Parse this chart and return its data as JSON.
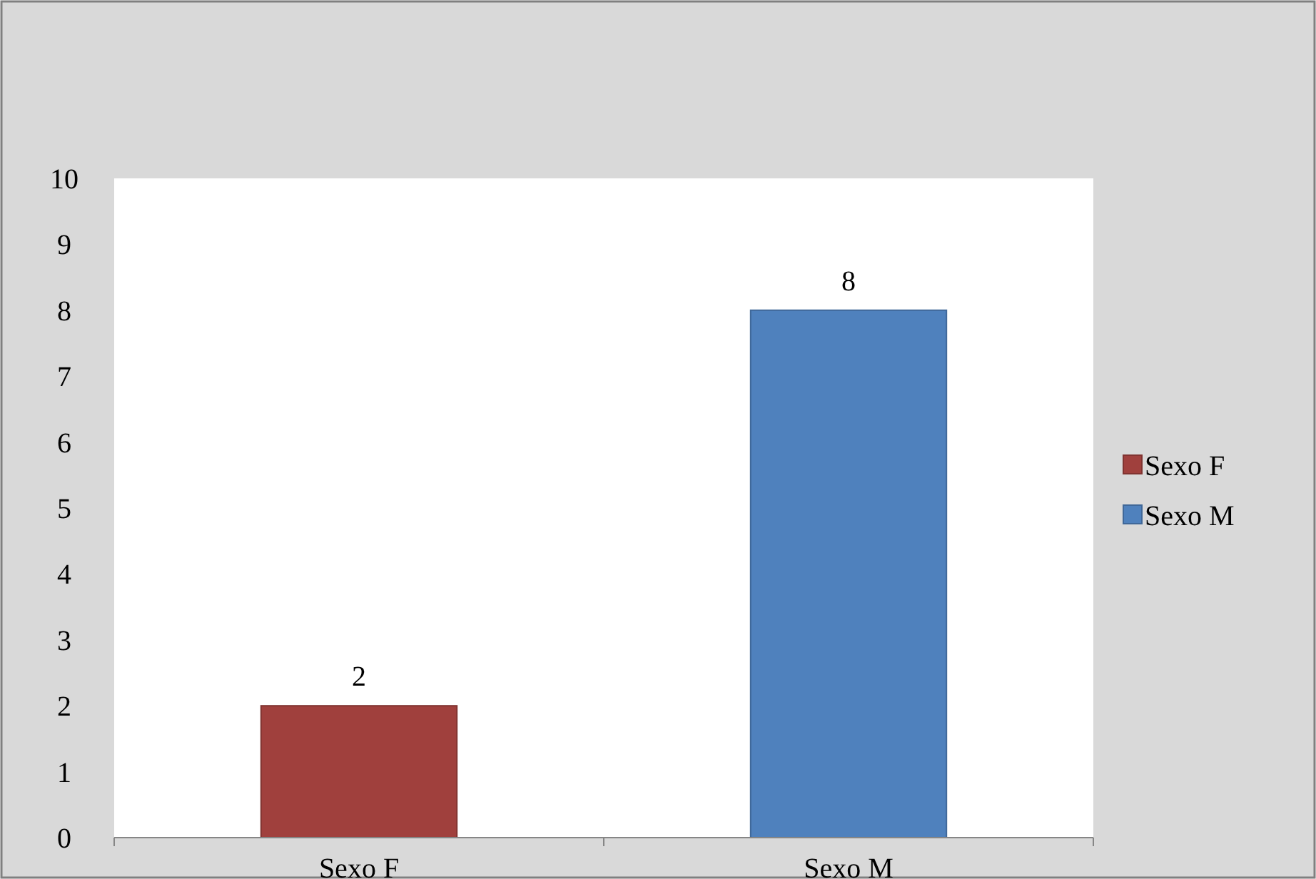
{
  "chart_data": {
    "type": "bar",
    "categories": [
      "Sexo F",
      "Sexo M"
    ],
    "series": [
      {
        "name": "Sexo F",
        "color": "#a0403d",
        "values": [
          2,
          null
        ]
      },
      {
        "name": "Sexo M",
        "color": "#4f81bd",
        "values": [
          null,
          8
        ]
      }
    ],
    "ylim": [
      0,
      10
    ],
    "yticks": [
      0,
      1,
      2,
      3,
      4,
      5,
      6,
      7,
      8,
      9,
      10
    ],
    "data_labels": true,
    "legend": "right"
  }
}
